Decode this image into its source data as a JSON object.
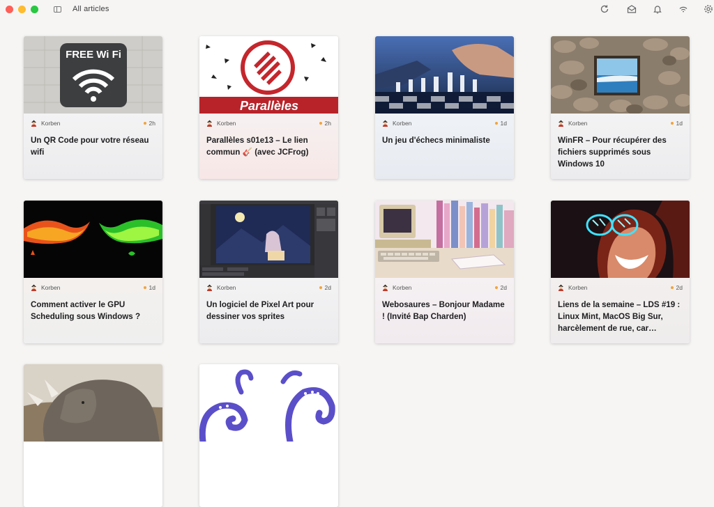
{
  "window": {
    "title": "All articles"
  },
  "toolbar": {
    "icons": [
      "refresh-icon",
      "mark-read-icon",
      "notifications-icon",
      "feed-icon",
      "settings-icon"
    ]
  },
  "colors": {
    "unread_dot": "#f2a33a",
    "background": "#f6f5f4"
  },
  "articles": [
    {
      "author": "Korben",
      "age": "2h",
      "title": "Un QR Code pour votre réseau wifi",
      "thumb_text": "FREE Wi Fi"
    },
    {
      "author": "Korben",
      "age": "2h",
      "title": "Parallèles s01e13 – Le lien commun 🎸 (avec JCFrog)",
      "thumb_text": "Parallèles"
    },
    {
      "author": "Korben",
      "age": "1d",
      "title": "Un jeu d'échecs minimaliste"
    },
    {
      "author": "Korben",
      "age": "1d",
      "title": "WinFR – Pour récupérer des fichiers supprimés sous Windows 10"
    },
    {
      "author": "Korben",
      "age": "1d",
      "title": "Comment activer le GPU Scheduling sous Windows ?"
    },
    {
      "author": "Korben",
      "age": "2d",
      "title": "Un logiciel de Pixel Art pour dessiner vos sprites"
    },
    {
      "author": "Korben",
      "age": "2d",
      "title": "Webosaures – Bonjour Madame ! (Invité Bap Charden)"
    },
    {
      "author": "Korben",
      "age": "2d",
      "title": "Liens de la semaine – LDS #19 : Linux Mint, MacOS Big Sur, harcèlement de rue, car…"
    },
    {
      "author": "",
      "age": "",
      "title": ""
    },
    {
      "author": "",
      "age": "",
      "title": ""
    }
  ]
}
